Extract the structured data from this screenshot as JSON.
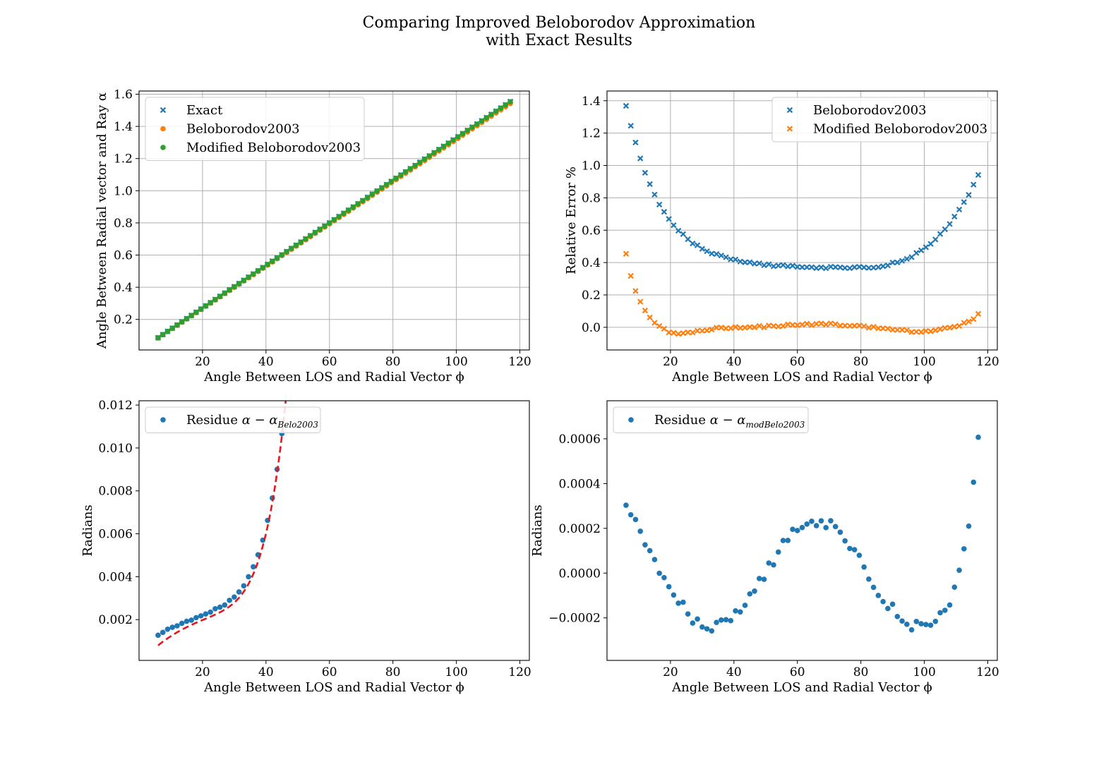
{
  "figure": {
    "title_line1": "Comparing Improved Beloborodov Approximation",
    "title_line2": "with Exact Results"
  },
  "colors": {
    "blue": "#1f77b4",
    "orange": "#ff7f0e",
    "green": "#2ca02c",
    "red": "#e8141c",
    "grid": "#b0b0b0"
  },
  "chart_data": [
    {
      "id": "tl",
      "type": "scatter",
      "xlabel": "Angle Between LOS and Radial Vector ϕ",
      "ylabel": "Angle Between Radial vector and Ray α",
      "xlim": [
        0,
        123
      ],
      "ylim": [
        0.01,
        1.62
      ],
      "xticks": [
        20,
        40,
        60,
        80,
        100,
        120
      ],
      "xtick_labels": [
        "20",
        "40",
        "60",
        "80",
        "100",
        "120"
      ],
      "yticks": [
        0.2,
        0.4,
        0.6,
        0.8,
        1.0,
        1.2,
        1.4,
        1.6
      ],
      "ytick_labels": [
        "0.2",
        "0.4",
        "0.6",
        "0.8",
        "1.0",
        "1.2",
        "1.4",
        "1.6"
      ],
      "grid": true,
      "legend_position": "top-left",
      "x": {
        "start": 6,
        "end": 117,
        "count": 75
      },
      "series": [
        {
          "name": "Exact",
          "marker": "x",
          "color": "#1f77b4",
          "formula": "linear",
          "y_start": 0.0858,
          "y_end": 1.554
        },
        {
          "name": "Beloborodov2003",
          "marker": "o",
          "color": "#ff7f0e",
          "formula": "linear",
          "y_start": 0.0847,
          "y_end": 1.542
        },
        {
          "name": "Modified Beloborodov2003",
          "marker": "o",
          "color": "#2ca02c",
          "formula": "linear",
          "y_start": 0.0856,
          "y_end": 1.553
        }
      ]
    },
    {
      "id": "tr",
      "type": "scatter",
      "xlabel": "Angle Between LOS and Radial Vector ϕ",
      "ylabel": "Relative Error %",
      "xlim": [
        0,
        123
      ],
      "ylim": [
        -0.14,
        1.46
      ],
      "xticks": [
        20,
        40,
        60,
        80,
        100,
        120
      ],
      "xtick_labels": [
        "20",
        "40",
        "60",
        "80",
        "100",
        "120"
      ],
      "yticks": [
        0.0,
        0.2,
        0.4,
        0.6,
        0.8,
        1.0,
        1.2,
        1.4
      ],
      "ytick_labels": [
        "0.0",
        "0.2",
        "0.4",
        "0.6",
        "0.8",
        "1.0",
        "1.2",
        "1.4"
      ],
      "grid": true,
      "legend_position": "top-right",
      "x": {
        "start": 6,
        "end": 117,
        "count": 75
      },
      "series": [
        {
          "name": "Beloborodov2003",
          "marker": "x",
          "color": "#1f77b4",
          "formula": "belo_error"
        },
        {
          "name": "Modified Beloborodov2003",
          "marker": "x",
          "color": "#ff7f0e",
          "formula": "modbelo_error"
        }
      ]
    },
    {
      "id": "bl",
      "type": "scatter",
      "xlabel": "Angle Between LOS and Radial Vector ϕ",
      "ylabel": "Radians",
      "xlim": [
        0,
        123
      ],
      "ylim": [
        0.0001,
        0.0122
      ],
      "xticks": [
        20,
        40,
        60,
        80,
        100,
        120
      ],
      "xtick_labels": [
        "20",
        "40",
        "60",
        "80",
        "100",
        "120"
      ],
      "yticks": [
        0.002,
        0.004,
        0.006,
        0.008,
        0.01,
        0.012
      ],
      "ytick_labels": [
        "0.002",
        "0.004",
        "0.006",
        "0.008",
        "0.010",
        "0.012"
      ],
      "grid": false,
      "legend_position": "top-left",
      "x": {
        "start": 6,
        "end": 117,
        "count": 75
      },
      "series": [
        {
          "name": "Residue α − α_Belo2003",
          "legend_main": "Residue ",
          "legend_sym": "α − α",
          "legend_sub": "Belo2003",
          "marker": "o",
          "color": "#1f77b4",
          "formula": "residue_belo"
        },
        {
          "name": "",
          "marker": "dashed-line",
          "color": "#e8141c",
          "formula": "residue_belo_fit"
        }
      ]
    },
    {
      "id": "br",
      "type": "scatter",
      "xlabel": "Angle Between LOS and Radial Vector ϕ",
      "ylabel": "Radians",
      "xlim": [
        0,
        123
      ],
      "ylim": [
        -0.00039,
        0.00077
      ],
      "xticks": [
        20,
        40,
        60,
        80,
        100,
        120
      ],
      "xtick_labels": [
        "20",
        "40",
        "60",
        "80",
        "100",
        "120"
      ],
      "yticks": [
        -0.0002,
        0.0,
        0.0002,
        0.0004,
        0.0006
      ],
      "ytick_labels": [
        "−0.0002",
        "0.0000",
        "0.0002",
        "0.0004",
        "0.0006"
      ],
      "grid": false,
      "legend_position": "top-left",
      "x": {
        "start": 6,
        "end": 117,
        "count": 75
      },
      "series": [
        {
          "name": "Residue α − α_modBelo2003",
          "legend_main": "Residue ",
          "legend_sym": "α − α",
          "legend_sub": "modBelo2003",
          "marker": "o",
          "color": "#1f77b4",
          "formula": "residue_modbelo"
        }
      ]
    }
  ]
}
